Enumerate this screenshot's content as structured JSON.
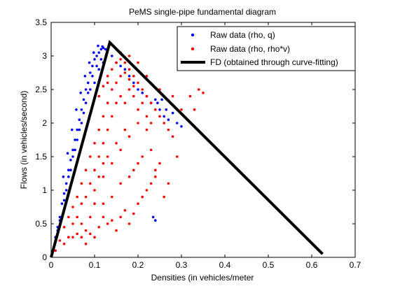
{
  "chart_data": {
    "type": "scatter",
    "title": "PeMS single-pipe fundamental diagram",
    "xlabel": "Densities (in vehicles/meter",
    "ylabel": "Flows (in vehicles/second)",
    "xlim": [
      0,
      0.7
    ],
    "ylim": [
      0,
      3.5
    ],
    "xticks": [
      "0",
      "0.1",
      "0.2",
      "0.3",
      "0.4",
      "0.5",
      "0.6",
      "0.7"
    ],
    "yticks": [
      "0",
      "0.5",
      "1",
      "1.5",
      "2",
      "2.5",
      "3",
      "3.5"
    ],
    "grid": false,
    "legend_position": "top-right",
    "series": [
      {
        "name": "Raw data (rho, q)",
        "kind": "points",
        "color": "#0000ff",
        "marker": "dot",
        "points": [
          [
            0.005,
            0.12
          ],
          [
            0.01,
            0.3
          ],
          [
            0.015,
            0.45
          ],
          [
            0.02,
            0.6
          ],
          [
            0.025,
            0.8
          ],
          [
            0.03,
            0.95
          ],
          [
            0.035,
            1.1
          ],
          [
            0.04,
            1.3
          ],
          [
            0.045,
            1.45
          ],
          [
            0.05,
            1.6
          ],
          [
            0.055,
            1.75
          ],
          [
            0.06,
            1.9
          ],
          [
            0.065,
            2.05
          ],
          [
            0.07,
            2.2
          ],
          [
            0.075,
            2.35
          ],
          [
            0.08,
            2.5
          ],
          [
            0.085,
            2.6
          ],
          [
            0.09,
            2.75
          ],
          [
            0.095,
            2.85
          ],
          [
            0.1,
            2.95
          ],
          [
            0.105,
            3.0
          ],
          [
            0.11,
            3.05
          ],
          [
            0.115,
            3.1
          ],
          [
            0.12,
            3.12
          ],
          [
            0.125,
            3.1
          ],
          [
            0.13,
            3.08
          ],
          [
            0.12,
            2.9
          ],
          [
            0.11,
            2.8
          ],
          [
            0.1,
            2.6
          ],
          [
            0.09,
            2.5
          ],
          [
            0.08,
            2.3
          ],
          [
            0.07,
            2.0
          ],
          [
            0.06,
            1.75
          ],
          [
            0.05,
            1.5
          ],
          [
            0.04,
            1.2
          ],
          [
            0.035,
            1.0
          ],
          [
            0.03,
            0.85
          ],
          [
            0.02,
            0.55
          ],
          [
            0.015,
            0.4
          ],
          [
            0.01,
            0.25
          ],
          [
            0.14,
            3.0
          ],
          [
            0.15,
            2.9
          ],
          [
            0.16,
            2.85
          ],
          [
            0.17,
            2.8
          ],
          [
            0.18,
            2.7
          ],
          [
            0.19,
            2.6
          ],
          [
            0.2,
            2.5
          ],
          [
            0.21,
            2.45
          ],
          [
            0.22,
            2.4
          ],
          [
            0.23,
            2.3
          ],
          [
            0.24,
            2.35
          ],
          [
            0.25,
            2.2
          ],
          [
            0.26,
            2.1
          ],
          [
            0.27,
            2.05
          ],
          [
            0.28,
            2.15
          ],
          [
            0.29,
            2.0
          ],
          [
            0.3,
            1.95
          ],
          [
            0.245,
            2.3
          ],
          [
            0.255,
            2.35
          ],
          [
            0.265,
            2.2
          ],
          [
            0.235,
            0.6
          ],
          [
            0.24,
            0.55
          ],
          [
            0.045,
            1.3
          ],
          [
            0.055,
            1.6
          ],
          [
            0.065,
            1.9
          ],
          [
            0.075,
            2.15
          ],
          [
            0.085,
            2.45
          ],
          [
            0.095,
            2.7
          ],
          [
            0.105,
            2.85
          ],
          [
            0.115,
            2.95
          ],
          [
            0.108,
            3.15
          ],
          [
            0.118,
            3.14
          ],
          [
            0.098,
            3.05
          ],
          [
            0.088,
            2.9
          ],
          [
            0.078,
            2.7
          ],
          [
            0.068,
            2.45
          ],
          [
            0.058,
            2.2
          ],
          [
            0.048,
            1.9
          ],
          [
            0.038,
            1.55
          ],
          [
            0.028,
            1.2
          ]
        ]
      },
      {
        "name": "Raw data (rho, rho*v)",
        "kind": "points",
        "color": "#ff0000",
        "marker": "dot",
        "points": [
          [
            0.01,
            0.1
          ],
          [
            0.02,
            0.25
          ],
          [
            0.03,
            0.45
          ],
          [
            0.04,
            0.6
          ],
          [
            0.05,
            0.75
          ],
          [
            0.06,
            0.9
          ],
          [
            0.07,
            1.1
          ],
          [
            0.08,
            1.3
          ],
          [
            0.09,
            1.5
          ],
          [
            0.1,
            1.7
          ],
          [
            0.11,
            1.9
          ],
          [
            0.12,
            2.1
          ],
          [
            0.13,
            2.3
          ],
          [
            0.14,
            2.5
          ],
          [
            0.15,
            2.6
          ],
          [
            0.16,
            2.7
          ],
          [
            0.17,
            2.75
          ],
          [
            0.18,
            2.8
          ],
          [
            0.19,
            2.7
          ],
          [
            0.2,
            2.6
          ],
          [
            0.21,
            2.5
          ],
          [
            0.22,
            2.4
          ],
          [
            0.23,
            2.3
          ],
          [
            0.24,
            2.2
          ],
          [
            0.25,
            2.1
          ],
          [
            0.26,
            2.0
          ],
          [
            0.27,
            1.9
          ],
          [
            0.28,
            1.8
          ],
          [
            0.3,
            2.2
          ],
          [
            0.32,
            2.4
          ],
          [
            0.34,
            2.5
          ],
          [
            0.35,
            2.45
          ],
          [
            0.33,
            2.2
          ],
          [
            0.28,
            2.4
          ],
          [
            0.25,
            2.5
          ],
          [
            0.22,
            2.7
          ],
          [
            0.2,
            2.9
          ],
          [
            0.18,
            3.0
          ],
          [
            0.16,
            3.05
          ],
          [
            0.15,
            3.1
          ],
          [
            0.05,
            0.3
          ],
          [
            0.06,
            0.35
          ],
          [
            0.07,
            0.5
          ],
          [
            0.08,
            0.4
          ],
          [
            0.09,
            0.35
          ],
          [
            0.1,
            0.3
          ],
          [
            0.11,
            0.45
          ],
          [
            0.12,
            0.6
          ],
          [
            0.13,
            0.5
          ],
          [
            0.14,
            0.55
          ],
          [
            0.15,
            0.4
          ],
          [
            0.16,
            0.6
          ],
          [
            0.17,
            0.7
          ],
          [
            0.18,
            0.5
          ],
          [
            0.19,
            0.65
          ],
          [
            0.2,
            0.8
          ],
          [
            0.21,
            0.9
          ],
          [
            0.22,
            1.0
          ],
          [
            0.23,
            1.1
          ],
          [
            0.24,
            1.2
          ],
          [
            0.1,
            1.0
          ],
          [
            0.12,
            1.2
          ],
          [
            0.14,
            1.4
          ],
          [
            0.16,
            1.6
          ],
          [
            0.18,
            1.8
          ],
          [
            0.2,
            2.0
          ],
          [
            0.22,
            2.1
          ],
          [
            0.24,
            1.3
          ],
          [
            0.26,
            0.9
          ],
          [
            0.19,
            1.3
          ],
          [
            0.12,
            0.8
          ],
          [
            0.14,
            0.9
          ],
          [
            0.16,
            1.1
          ],
          [
            0.18,
            1.2
          ],
          [
            0.2,
            1.4
          ],
          [
            0.21,
            1.5
          ],
          [
            0.23,
            1.6
          ],
          [
            0.17,
            1.9
          ],
          [
            0.15,
            1.7
          ],
          [
            0.13,
            1.5
          ],
          [
            0.07,
            0.8
          ],
          [
            0.08,
            0.9
          ],
          [
            0.09,
            1.1
          ],
          [
            0.1,
            1.3
          ],
          [
            0.11,
            1.5
          ],
          [
            0.12,
            1.7
          ],
          [
            0.13,
            1.9
          ],
          [
            0.14,
            2.1
          ],
          [
            0.15,
            2.3
          ],
          [
            0.16,
            2.4
          ],
          [
            0.03,
            0.2
          ],
          [
            0.04,
            0.3
          ],
          [
            0.05,
            0.5
          ],
          [
            0.06,
            0.6
          ],
          [
            0.07,
            0.3
          ],
          [
            0.08,
            0.2
          ],
          [
            0.09,
            0.6
          ],
          [
            0.1,
            0.8
          ],
          [
            0.11,
            1.2
          ],
          [
            0.12,
            1.4
          ],
          [
            0.17,
            2.3
          ],
          [
            0.18,
            2.5
          ],
          [
            0.19,
            2.4
          ],
          [
            0.2,
            2.2
          ],
          [
            0.21,
            2.3
          ],
          [
            0.22,
            1.9
          ],
          [
            0.23,
            2.0
          ],
          [
            0.25,
            1.4
          ],
          [
            0.27,
            1.1
          ],
          [
            0.29,
            1.5
          ],
          [
            0.13,
            2.7
          ],
          [
            0.14,
            2.8
          ],
          [
            0.15,
            2.9
          ],
          [
            0.16,
            2.95
          ],
          [
            0.17,
            2.9
          ],
          [
            0.18,
            2.65
          ],
          [
            0.19,
            2.55
          ],
          [
            0.11,
            2.4
          ],
          [
            0.12,
            2.55
          ],
          [
            0.13,
            2.6
          ]
        ]
      },
      {
        "name": "FD (obtained through curve-fitting)",
        "kind": "line",
        "color": "#000000",
        "points": [
          [
            0.0,
            0.0
          ],
          [
            0.135,
            3.2
          ],
          [
            0.625,
            0.05
          ]
        ]
      }
    ]
  }
}
